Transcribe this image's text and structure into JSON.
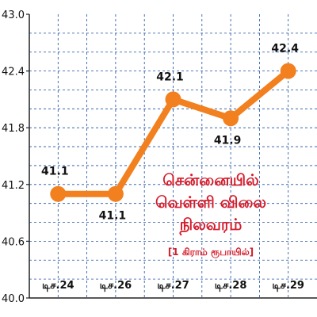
{
  "chart_data": {
    "type": "line",
    "title_lines": [
      "சென்னையில்",
      "வெள்ளி விலை",
      "நிலவரம்"
    ],
    "subtitle": "[1 கிராம் ரூபாயில்]",
    "categories": [
      "டிச.24",
      "டிச.26",
      "டிச.27",
      "டிச.28",
      "டிச.29"
    ],
    "values": [
      41.1,
      41.1,
      42.1,
      41.9,
      42.4
    ],
    "data_labels": [
      "41.1",
      "41.1",
      "42.1",
      "41.9",
      "42.4"
    ],
    "y_ticks": [
      "40.0",
      "40.6",
      "41.2",
      "41.8",
      "42.4",
      "43.0"
    ],
    "ylim": [
      40.0,
      43.0
    ],
    "grid": true,
    "colors": {
      "line": "#f2801e",
      "grid": "#1b4fa0",
      "axis": "#222222",
      "title": "#d51b2a"
    }
  }
}
